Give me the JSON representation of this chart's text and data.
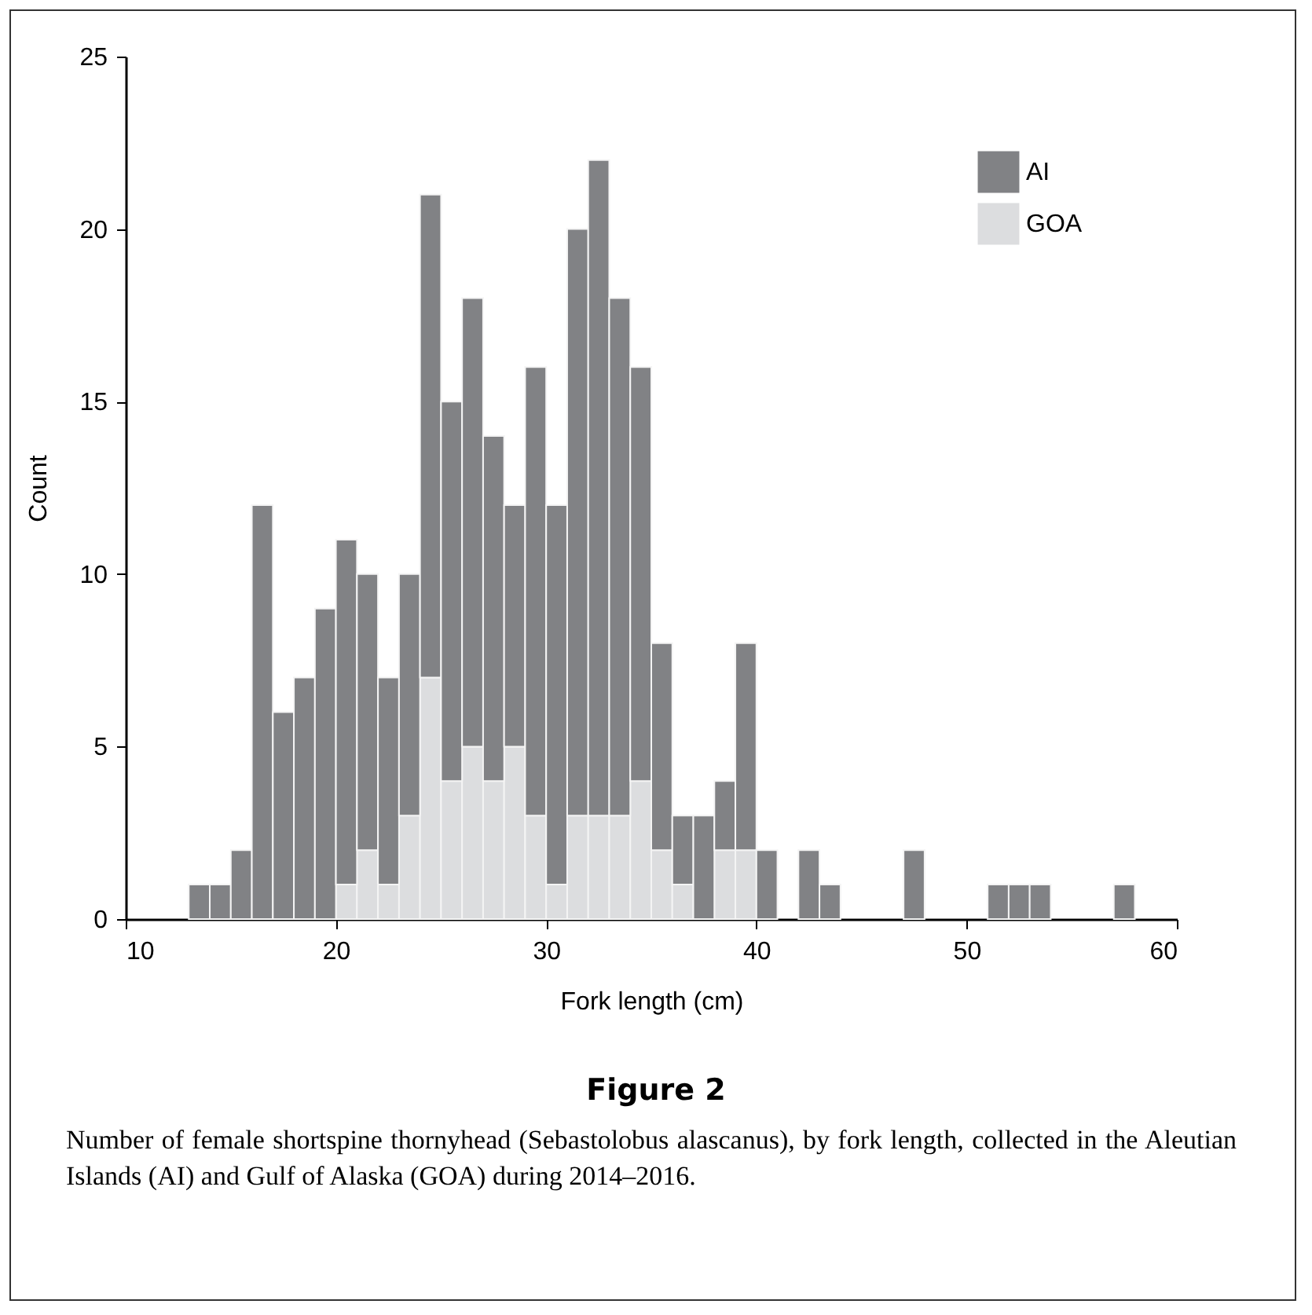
{
  "chart_data": {
    "type": "bar",
    "title": "Figure 2",
    "xlabel": "Fork length (cm)",
    "ylabel": "Count",
    "annotations": [
      "Number of female shortspine thornyhead (Sebastolobus alascanus), by fork length, collected in the Aleutian Islands (AI) and Gulf of Alaska (GOA) during 2014–2016."
    ],
    "x": [
      13.5,
      14.5,
      15.5,
      16.5,
      17.5,
      18.5,
      19.5,
      20.5,
      21.5,
      22.5,
      23.5,
      24.5,
      25.5,
      26.5,
      27.5,
      28.5,
      29.5,
      30.5,
      31.5,
      32.5,
      33.5,
      34.5,
      35.5,
      36.5,
      37.5,
      38.5,
      39.5,
      40.5,
      41.5,
      42.5,
      43.5,
      44.5,
      45.5,
      46.5,
      47.5,
      48.5,
      49.5,
      50.5,
      51.5,
      52.5,
      53.5,
      54.5,
      55.5,
      56.5,
      57.5
    ],
    "series": [
      {
        "name": "GOA",
        "color": "#dcdddf",
        "values": [
          0,
          0,
          0,
          0,
          0,
          0,
          0,
          1,
          2,
          1,
          3,
          7,
          4,
          5,
          4,
          5,
          3,
          1,
          3,
          3,
          3,
          4,
          2,
          1,
          0,
          2,
          2,
          0,
          0,
          0,
          0,
          0,
          0,
          0,
          0,
          0,
          0,
          0,
          0,
          0,
          0,
          0,
          0,
          0,
          0
        ]
      },
      {
        "name": "AI",
        "color": "#818285",
        "values": [
          1,
          1,
          2,
          12,
          6,
          7,
          9,
          10,
          8,
          6,
          7,
          14,
          11,
          13,
          10,
          7,
          13,
          11,
          17,
          19,
          15,
          12,
          6,
          2,
          3,
          2,
          6,
          2,
          0,
          2,
          1,
          0,
          0,
          0,
          2,
          0,
          0,
          0,
          1,
          1,
          1,
          0,
          0,
          0,
          1
        ]
      }
    ],
    "stacked": true,
    "xlim": [
      10,
      60
    ],
    "xticks": [
      10,
      20,
      30,
      40,
      50,
      60
    ],
    "ylim": [
      0,
      25
    ],
    "yticks": [
      0,
      5,
      10,
      15,
      20,
      25
    ],
    "grid": false,
    "legend": "top right"
  }
}
